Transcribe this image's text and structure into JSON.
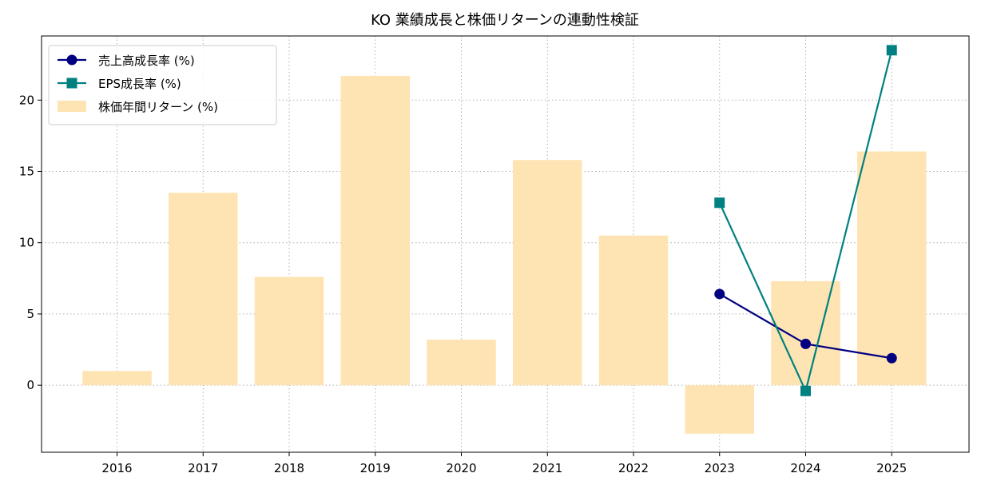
{
  "chart_data": {
    "type": "bar",
    "title": "KO 業績成長と株価リターンの連動性検証",
    "xlabel": "",
    "ylabel": "",
    "categories": [
      "2016",
      "2017",
      "2018",
      "2019",
      "2020",
      "2021",
      "2022",
      "2023",
      "2024",
      "2025"
    ],
    "ylim": [
      -4.7,
      24.5
    ],
    "yticks": [
      0,
      5,
      10,
      15,
      20
    ],
    "grid": true,
    "legend_position": "top-left",
    "series": [
      {
        "name": "売上高成長率 (%)",
        "type": "line",
        "marker": "circle",
        "color": "#000080",
        "values": [
          null,
          null,
          null,
          null,
          null,
          null,
          null,
          6.4,
          2.9,
          1.9
        ]
      },
      {
        "name": "EPS成長率 (%)",
        "type": "line",
        "marker": "square",
        "color": "#008080",
        "values": [
          null,
          null,
          null,
          null,
          null,
          null,
          null,
          12.8,
          -0.4,
          23.5
        ]
      },
      {
        "name": "株価年間リターン (%)",
        "type": "bar",
        "color": "#ffe4b3",
        "values": [
          1.0,
          13.5,
          7.6,
          21.7,
          3.2,
          15.8,
          10.5,
          -3.4,
          7.3,
          16.4
        ]
      }
    ]
  }
}
